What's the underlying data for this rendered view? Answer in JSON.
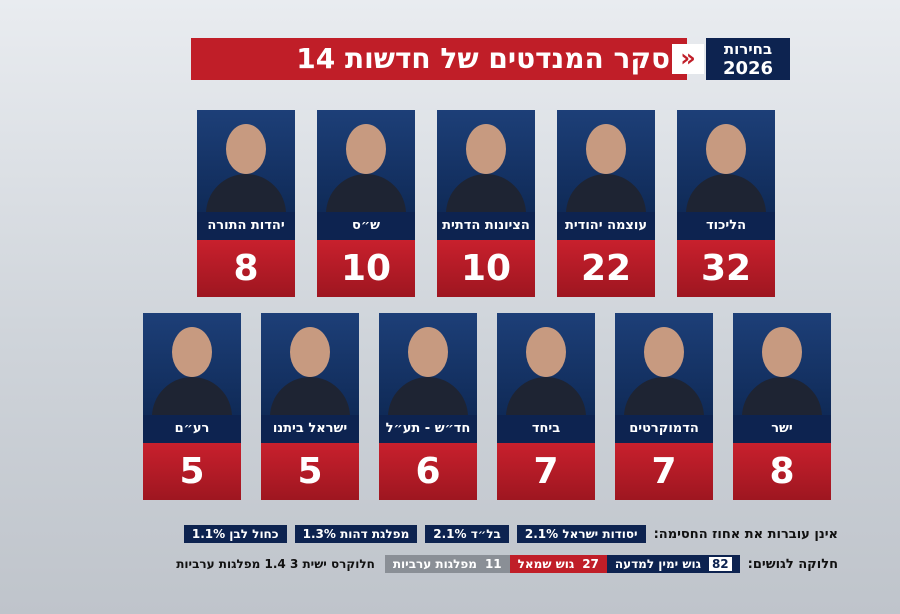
{
  "header": {
    "badge": [
      "בחירות",
      "2026"
    ],
    "title": "סקר המנדטים של חדשות 14"
  },
  "rows": [
    [
      {
        "name": "הליכוד",
        "seats": 32
      },
      {
        "name": "עוצמה יהודית",
        "seats": 22
      },
      {
        "name": "הציונות הדתית",
        "seats": 10
      },
      {
        "name": "ש״ס",
        "seats": 10
      },
      {
        "name": "יהדות התורה",
        "seats": 8
      }
    ],
    [
      {
        "name": "ישר",
        "seats": 8
      },
      {
        "name": "הדמוקרטים",
        "seats": 7
      },
      {
        "name": "ביחד",
        "seats": 7
      },
      {
        "name": "חד״ש - תע״ל",
        "seats": 6
      },
      {
        "name": "ישראל ביתנו",
        "seats": 5
      },
      {
        "name": "רע״ם",
        "seats": 5
      }
    ]
  ],
  "threshold": {
    "label": "אינן עוברות את אחוז החסימה:",
    "items": [
      "יסודות ישראל 2.1%",
      "בל״ד 2.1%",
      "מפלגת דהות 1.3%",
      "כחול לבן 1.1%"
    ]
  },
  "blocs": {
    "label": "חלוקה לגושים:",
    "items": [
      {
        "seats": 82,
        "name": "גוש ימין למדעה"
      },
      {
        "seats": 27,
        "name": "גוש שמאל"
      },
      {
        "seats": 11,
        "name": "מפלגות ערביות"
      }
    ],
    "note": "חלוקרס ישית 3 1.4 מפלגות ערביות"
  }
}
